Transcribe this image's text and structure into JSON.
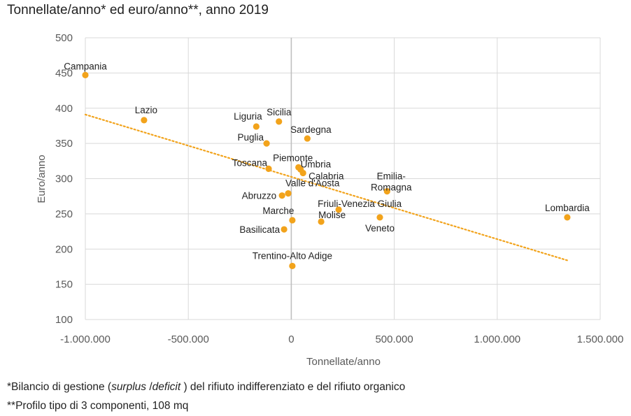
{
  "title": "Tonnellate/anno* ed euro/anno**, anno 2019",
  "notes": {
    "note1_prefix": "*Bilancio di gestione (",
    "note1_surplus": "surplus",
    "note1_sep": " /",
    "note1_deficit": "deficit",
    "note1_suffix": " ) del rifiuto indifferenziato e del rifiuto organico",
    "note2": "**Profilo tipo di 3 componenti, 108 mq"
  },
  "colors": {
    "marker": "#F2A31B",
    "trendline": "#F2A31B",
    "grid": "#D9D9D9",
    "zero_axis": "#BFBFBF"
  },
  "chart_data": {
    "type": "scatter",
    "title": "Tonnellate/anno* ed euro/anno**, anno 2019",
    "xlabel": "Tonnellate/anno",
    "ylabel": "Euro/anno",
    "xlim": [
      -1000000,
      1500000
    ],
    "ylim": [
      100,
      500
    ],
    "x_ticks": [
      -1000000,
      -500000,
      0,
      500000,
      1000000,
      1500000
    ],
    "x_tick_labels": [
      "-1.000.000",
      "-500.000",
      "0",
      "500.000",
      "1.000.000",
      "1.500.000"
    ],
    "y_ticks": [
      100,
      150,
      200,
      250,
      300,
      350,
      400,
      450,
      500
    ],
    "y_tick_labels": [
      "100",
      "150",
      "200",
      "250",
      "300",
      "350",
      "400",
      "450",
      "500"
    ],
    "grid": true,
    "points": [
      {
        "label": "Campania",
        "x": -1000000,
        "y": 447
      },
      {
        "label": "Lazio",
        "x": -715000,
        "y": 383
      },
      {
        "label": "Liguria",
        "x": -170000,
        "y": 374
      },
      {
        "label": "Sicilia",
        "x": -60000,
        "y": 381
      },
      {
        "label": "Sardegna",
        "x": 78000,
        "y": 357
      },
      {
        "label": "Puglia",
        "x": -120000,
        "y": 350
      },
      {
        "label": "Piemonte",
        "x": 35000,
        "y": 316
      },
      {
        "label": "Toscana",
        "x": -110000,
        "y": 314
      },
      {
        "label": "Umbria",
        "x": 45000,
        "y": 313
      },
      {
        "label": "Calabria",
        "x": 57000,
        "y": 308
      },
      {
        "label": "Valle d'Aosta",
        "x": -15000,
        "y": 279
      },
      {
        "label": "Abruzzo",
        "x": -45000,
        "y": 276
      },
      {
        "label": "Emilia-Romagna",
        "x": 465000,
        "y": 282
      },
      {
        "label": "Friuli-Venezia Giulia",
        "x": 230000,
        "y": 256
      },
      {
        "label": "Lombardia",
        "x": 1340000,
        "y": 245
      },
      {
        "label": "Veneto",
        "x": 430000,
        "y": 245
      },
      {
        "label": "Marche",
        "x": 5000,
        "y": 241
      },
      {
        "label": "Molise",
        "x": 145000,
        "y": 239
      },
      {
        "label": "Basilicata",
        "x": -35000,
        "y": 228
      },
      {
        "label": "Trentino-Alto Adige",
        "x": 5000,
        "y": 176
      }
    ],
    "trendline": {
      "style": "dotted",
      "x": [
        -1000000,
        1340000
      ],
      "y": [
        391,
        184
      ]
    }
  }
}
